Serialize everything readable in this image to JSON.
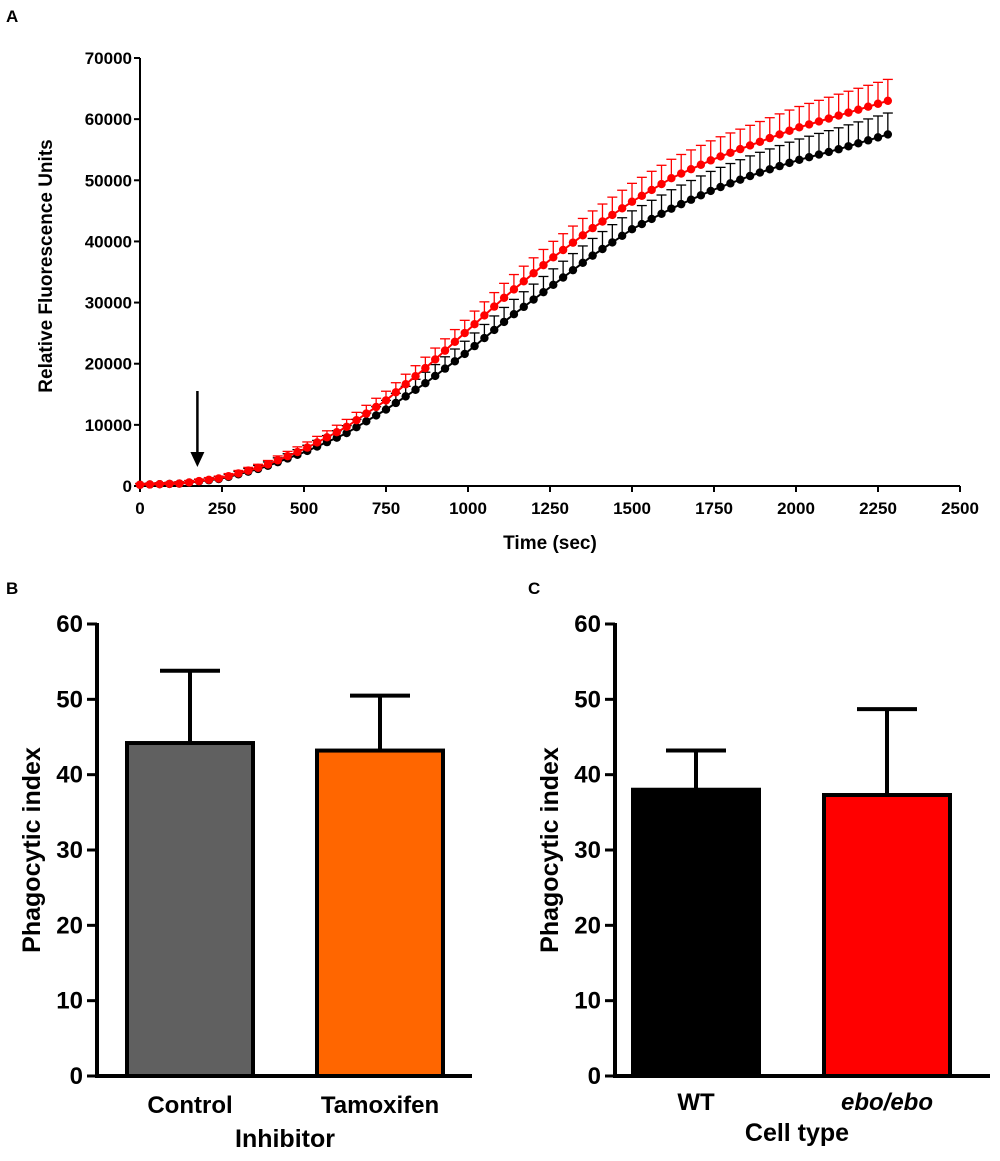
{
  "chart_data": [
    {
      "panel": "A",
      "type": "line",
      "title": "",
      "xlabel": "Time (sec)",
      "ylabel": "Relative Fluorescence Units",
      "xlim": [
        0,
        2500
      ],
      "ylim": [
        0,
        70000
      ],
      "xticks": [
        "0",
        "250",
        "500",
        "750",
        "1000",
        "1250",
        "1500",
        "1750",
        "2000",
        "2250",
        "2500"
      ],
      "yticks": [
        "0",
        "10000",
        "20000",
        "30000",
        "40000",
        "50000",
        "60000",
        "70000"
      ],
      "annotation": "arrow at 175 sec",
      "arrow_x": 175,
      "legend": "none",
      "series": [
        {
          "name": "black",
          "color": "#000000",
          "x": [
            0,
            125,
            250,
            375,
            500,
            625,
            750,
            875,
            1000,
            1125,
            1250,
            1375,
            1500,
            1625,
            1750,
            1875,
            2000,
            2125,
            2280
          ],
          "y": [
            200,
            400,
            1200,
            3000,
            5500,
            8500,
            12500,
            17000,
            22000,
            27500,
            32500,
            37500,
            42000,
            45500,
            48500,
            51000,
            53200,
            55000,
            57500
          ],
          "err": [
            200,
            300,
            400,
            600,
            900,
            1200,
            1500,
            1800,
            2100,
            2400,
            2600,
            2800,
            3000,
            3100,
            3200,
            3300,
            3400,
            3500,
            3500
          ]
        },
        {
          "name": "red",
          "color": "#ff0000",
          "x": [
            0,
            125,
            250,
            375,
            500,
            625,
            750,
            875,
            1000,
            1125,
            1250,
            1375,
            1500,
            1625,
            1750,
            1875,
            2000,
            2125,
            2280
          ],
          "y": [
            200,
            400,
            1300,
            3200,
            6000,
            9500,
            14000,
            19500,
            25500,
            31500,
            37000,
            42000,
            46500,
            50500,
            53500,
            56000,
            58500,
            60500,
            63000
          ],
          "err": [
            200,
            300,
            400,
            600,
            900,
            1200,
            1500,
            1800,
            2100,
            2400,
            2600,
            2800,
            3000,
            3100,
            3200,
            3300,
            3400,
            3500,
            3500
          ]
        }
      ]
    },
    {
      "panel": "B",
      "type": "bar",
      "title": "",
      "xlabel": "Inhibitor",
      "ylabel": "Phagocytic index",
      "ylim": [
        0,
        60
      ],
      "yticks": [
        "0",
        "10",
        "20",
        "30",
        "40",
        "50",
        "60"
      ],
      "categories": [
        "Control",
        "Tamoxifen"
      ],
      "values": [
        44.2,
        43.2
      ],
      "errors": [
        9.6,
        7.3
      ],
      "colors": [
        "#606060",
        "#ff6600"
      ]
    },
    {
      "panel": "C",
      "type": "bar",
      "title": "",
      "xlabel": "Cell type",
      "ylabel": "Phagocytic index",
      "ylim": [
        0,
        60
      ],
      "yticks": [
        "0",
        "10",
        "20",
        "30",
        "40",
        "50",
        "60"
      ],
      "categories": [
        "WT",
        "ebo/ebo"
      ],
      "values": [
        38.0,
        37.3
      ],
      "errors": [
        5.2,
        11.4
      ],
      "colors": [
        "#000000",
        "#ff0000"
      ]
    }
  ],
  "labels": {
    "panel_a": "A",
    "panel_b": "B",
    "panel_c": "C"
  }
}
